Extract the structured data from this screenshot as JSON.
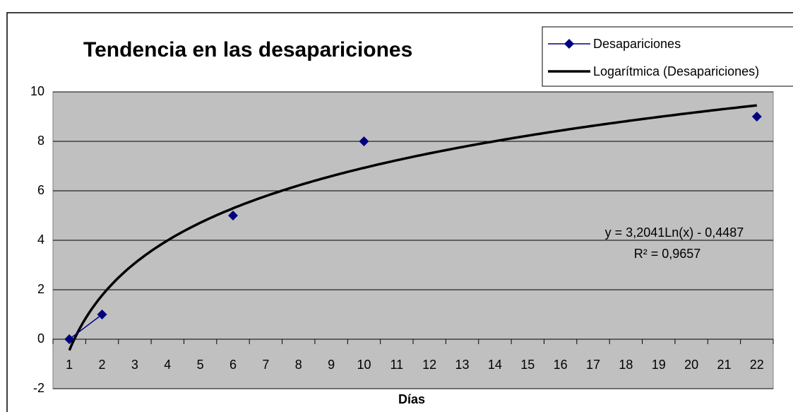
{
  "chart_data": {
    "type": "line",
    "title": "Tendencia en las desapariciones",
    "x_label": "Días",
    "categories": [
      "1",
      "2",
      "3",
      "4",
      "5",
      "6",
      "7",
      "8",
      "9",
      "10",
      "11",
      "12",
      "13",
      "14",
      "15",
      "16",
      "17",
      "18",
      "19",
      "20",
      "21",
      "22"
    ],
    "series": [
      {
        "name": "Desapariciones",
        "color": "#000080",
        "values": [
          0,
          1,
          null,
          null,
          null,
          5,
          null,
          null,
          null,
          8,
          null,
          null,
          null,
          null,
          null,
          null,
          null,
          null,
          null,
          null,
          null,
          9
        ]
      }
    ],
    "trendline": {
      "name": "Logarítmica (Desapariciones)",
      "color": "#000000",
      "a": 3.2041,
      "b": -0.4487,
      "equation": "y = 3,2041Ln(x) - 0,4487",
      "r2_label": "R² = 0,9657"
    },
    "ylim": [
      -2,
      10
    ],
    "yticks": [
      -2,
      0,
      2,
      4,
      6,
      8,
      10
    ],
    "grid": true,
    "legend": "top-right"
  }
}
